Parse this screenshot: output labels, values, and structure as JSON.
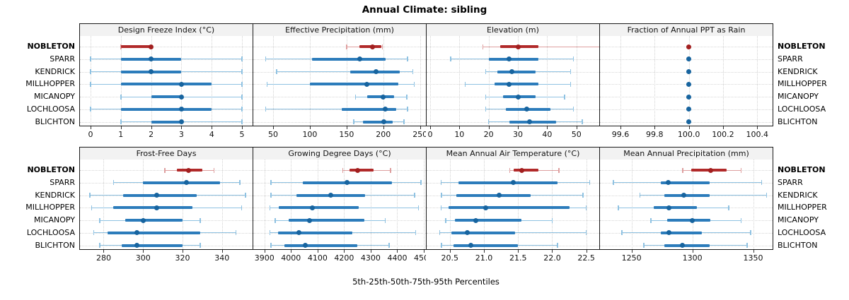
{
  "title": "Annual Climate: sibling",
  "xlabel": "5th-25th-50th-75th-95th Percentiles",
  "percentiles": [
    "5th",
    "25th",
    "50th",
    "75th",
    "95th"
  ],
  "stations": [
    "NOBLETON",
    "SPARR",
    "KENDRICK",
    "MILLHOPPER",
    "MICANOPY",
    "LOCHLOOSA",
    "BLICHTON"
  ],
  "highlight_station": "NOBLETON",
  "colors": {
    "blue_whisker": "#8FC2E2",
    "blue_band": "#2C7CBB",
    "blue_dot": "#17649F",
    "red_whisker": "#DE9F9F",
    "red_band": "#B12A2A",
    "red_dot": "#A21F1F",
    "grid": "#D2D2D2",
    "header_bg": "#F2F2F2",
    "border": "#1A1A1A"
  },
  "chart_data": [
    {
      "type": "interval",
      "title": "Design Freeze Index (°C)",
      "xlim": [
        -0.35,
        5.35
      ],
      "ticks": [
        0,
        1,
        2,
        3,
        4,
        5
      ],
      "tick_labels": [
        "0",
        "1",
        "2",
        "3",
        "4",
        "5"
      ],
      "values": [
        [
          1,
          1,
          2,
          2,
          2
        ],
        [
          0,
          1,
          2,
          3,
          5
        ],
        [
          0,
          1,
          2,
          3,
          5
        ],
        [
          0,
          1,
          3,
          4,
          5
        ],
        [
          1,
          2,
          3,
          3,
          5
        ],
        [
          0,
          1,
          3,
          4,
          5
        ],
        [
          1,
          2,
          3,
          3,
          5
        ]
      ]
    },
    {
      "type": "interval",
      "title": "Effective Precipitation (mm)",
      "xlim": [
        23,
        258
      ],
      "ticks": [
        50,
        100,
        150,
        200,
        250
      ],
      "tick_labels": [
        "50",
        "100",
        "150",
        "200",
        "250"
      ],
      "values": [
        [
          150,
          167,
          185,
          197,
          199
        ],
        [
          40,
          103,
          168,
          203,
          233
        ],
        [
          55,
          155,
          190,
          222,
          240
        ],
        [
          42,
          100,
          178,
          220,
          242
        ],
        [
          162,
          178,
          200,
          215,
          232
        ],
        [
          40,
          143,
          203,
          218,
          233
        ],
        [
          160,
          172,
          201,
          213,
          228
        ]
      ]
    },
    {
      "type": "interval",
      "title": "Elevation (m)",
      "xlim": [
        -1.2,
        57.8
      ],
      "ticks": [
        0,
        10,
        20,
        30,
        40,
        50
      ],
      "tick_labels": [
        "0",
        "10",
        "20",
        "30",
        "40",
        "50"
      ],
      "values": [
        [
          18,
          24,
          30,
          37,
          58
        ],
        [
          7,
          20,
          27,
          37,
          49
        ],
        [
          19,
          23,
          28,
          36,
          48
        ],
        [
          12,
          22,
          27,
          37,
          48
        ],
        [
          19,
          25,
          30,
          36,
          46
        ],
        [
          19,
          26,
          33,
          41,
          49
        ],
        [
          20,
          27,
          34,
          43,
          52
        ]
      ]
    },
    {
      "type": "interval",
      "title": "Fraction of Annual PPT as Rain",
      "xlim": [
        99.48,
        100.49
      ],
      "ticks": [
        99.6,
        99.8,
        100.0,
        100.2,
        100.4
      ],
      "tick_labels": [
        "99.6",
        "99.8",
        "100.0",
        "100.2",
        "100.4"
      ],
      "values": [
        [
          100,
          100,
          100,
          100,
          100
        ],
        [
          100,
          100,
          100,
          100,
          100
        ],
        [
          100,
          100,
          100,
          100,
          100
        ],
        [
          100,
          100,
          100,
          100,
          100
        ],
        [
          100,
          100,
          100,
          100,
          100
        ],
        [
          100,
          100,
          100,
          100,
          100
        ],
        [
          100,
          100,
          100,
          100,
          100
        ]
      ]
    },
    {
      "type": "interval",
      "title": "Frost-Free Days",
      "xlim": [
        268,
        355.5
      ],
      "ticks": [
        280,
        300,
        320,
        340,
        360
      ],
      "tick_labels": [
        "280",
        "300",
        "320",
        "340",
        "360"
      ],
      "values": [
        [
          311,
          317,
          323,
          330,
          336
        ],
        [
          285,
          300,
          322,
          339,
          349
        ],
        [
          273,
          290,
          307,
          327,
          352
        ],
        [
          274,
          285,
          307,
          325,
          350
        ],
        [
          278,
          291,
          300,
          320,
          329
        ],
        [
          275,
          282,
          297,
          329,
          347
        ],
        [
          278,
          289,
          297,
          320,
          329
        ]
      ]
    },
    {
      "type": "interval",
      "title": "Growing Degree Days (°C)",
      "xlim": [
        3858,
        4508
      ],
      "ticks": [
        3900,
        4000,
        4100,
        4200,
        4300,
        4400,
        4500
      ],
      "tick_labels": [
        "3900",
        "4000",
        "4100",
        "4200",
        "4300",
        "4400",
        "4500"
      ],
      "values": [
        [
          4195,
          4220,
          4250,
          4310,
          4375
        ],
        [
          3925,
          4045,
          4210,
          4380,
          4490
        ],
        [
          3925,
          4020,
          4150,
          4280,
          4465
        ],
        [
          3920,
          3955,
          4080,
          4255,
          4480
        ],
        [
          3940,
          3990,
          4070,
          4275,
          4355
        ],
        [
          3920,
          3950,
          4030,
          4230,
          4470
        ],
        [
          3925,
          3975,
          4055,
          4250,
          4370
        ]
      ]
    },
    {
      "type": "interval",
      "title": "Mean Annual Air Temperature (°C)",
      "xlim": [
        20.16,
        22.69
      ],
      "ticks": [
        20.5,
        21.0,
        21.5,
        22.0,
        22.5
      ],
      "tick_labels": [
        "20.5",
        "21.0",
        "21.5",
        "22.0",
        "22.5"
      ],
      "values": [
        [
          21.38,
          21.44,
          21.55,
          21.8,
          22.1
        ],
        [
          20.37,
          20.63,
          21.43,
          22.08,
          22.55
        ],
        [
          20.38,
          20.6,
          21.22,
          21.68,
          22.45
        ],
        [
          20.37,
          20.48,
          21.03,
          22.25,
          22.5
        ],
        [
          20.44,
          20.57,
          20.88,
          21.55,
          22.0
        ],
        [
          20.35,
          20.52,
          20.76,
          21.46,
          22.5
        ],
        [
          20.38,
          20.55,
          20.81,
          21.5,
          22.08
        ]
      ]
    },
    {
      "type": "interval",
      "title": "Mean Annual Precipitation (mm)",
      "xlim": [
        1224,
        1366
      ],
      "ticks": [
        1250,
        1300,
        1350
      ],
      "tick_labels": [
        "1250",
        "1300",
        "1350"
      ],
      "values": [
        [
          1292,
          1299,
          1315,
          1328,
          1340
        ],
        [
          1235,
          1274,
          1280,
          1314,
          1357
        ],
        [
          1257,
          1277,
          1293,
          1314,
          1361
        ],
        [
          1239,
          1268,
          1281,
          1304,
          1330
        ],
        [
          1266,
          1279,
          1300,
          1315,
          1340
        ],
        [
          1242,
          1274,
          1281,
          1308,
          1348
        ],
        [
          1260,
          1277,
          1292,
          1314,
          1345
        ]
      ]
    }
  ]
}
